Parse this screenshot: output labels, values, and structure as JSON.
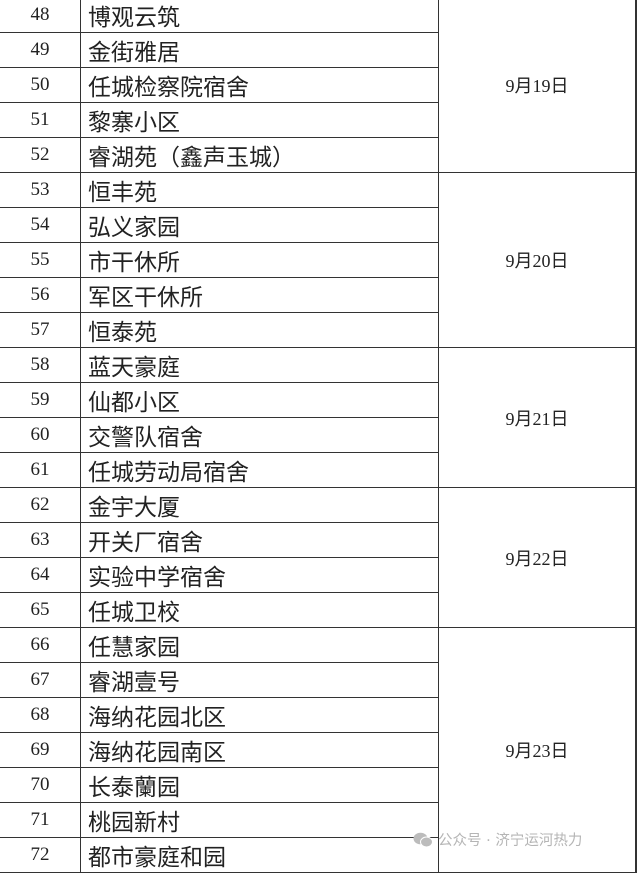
{
  "groups": [
    {
      "date": "9月19日",
      "rows": [
        [
          "48",
          "博观云筑"
        ],
        [
          "49",
          "金街雅居"
        ],
        [
          "50",
          "任城检察院宿舍"
        ],
        [
          "51",
          "黎寨小区"
        ],
        [
          "52",
          "睿湖苑（鑫声玉城）"
        ]
      ]
    },
    {
      "date": "9月20日",
      "rows": [
        [
          "53",
          "恒丰苑"
        ],
        [
          "54",
          "弘义家园"
        ],
        [
          "55",
          "市干休所"
        ],
        [
          "56",
          "军区干休所"
        ],
        [
          "57",
          "恒泰苑"
        ]
      ]
    },
    {
      "date": "9月21日",
      "rows": [
        [
          "58",
          "蓝天豪庭"
        ],
        [
          "59",
          "仙都小区"
        ],
        [
          "60",
          "交警队宿舍"
        ],
        [
          "61",
          "任城劳动局宿舍"
        ]
      ]
    },
    {
      "date": "9月22日",
      "rows": [
        [
          "62",
          "金宇大厦"
        ],
        [
          "63",
          "开关厂宿舍"
        ],
        [
          "64",
          "实验中学宿舍"
        ],
        [
          "65",
          "任城卫校"
        ]
      ]
    },
    {
      "date": "9月23日",
      "rows": [
        [
          "66",
          "任慧家园"
        ],
        [
          "67",
          "睿湖壹号"
        ],
        [
          "68",
          "海纳花园北区"
        ],
        [
          "69",
          "海纳花园南区"
        ],
        [
          "70",
          "长泰蘭园"
        ],
        [
          "71",
          "桃园新村"
        ],
        [
          "72",
          "都市豪庭和园"
        ]
      ]
    }
  ],
  "watermark": {
    "icon": "wechat-icon",
    "text": "公众号 · 济宁运河热力"
  }
}
